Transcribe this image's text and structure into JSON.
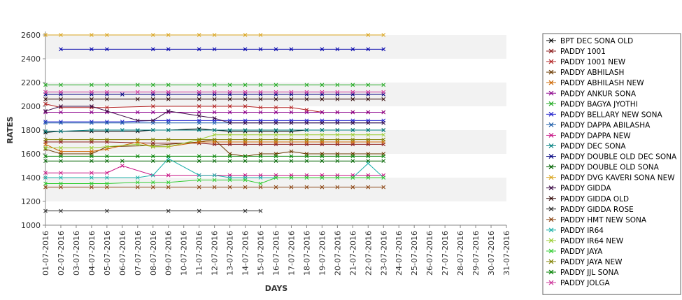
{
  "chart_data": {
    "type": "line",
    "title": "",
    "xlabel": "DAYS",
    "ylabel": "RATES",
    "ylim": [
      1000,
      2600
    ],
    "yticks": [
      1000,
      1200,
      1400,
      1600,
      1800,
      2000,
      2200,
      2400,
      2600
    ],
    "grid": "alternating horizontal bands",
    "legend_position": "right",
    "categories": [
      "01-07-2016",
      "02-07-2016",
      "03-07-2016",
      "04-07-2016",
      "05-07-2016",
      "06-07-2016",
      "07-07-2016",
      "08-07-2016",
      "09-07-2016",
      "10-07-2016",
      "11-07-2016",
      "12-07-2016",
      "13-07-2016",
      "14-07-2016",
      "15-07-2016",
      "16-07-2016",
      "17-07-2016",
      "18-07-2016",
      "19-07-2016",
      "20-07-2016",
      "21-07-2016",
      "22-07-2016",
      "23-07-2016",
      "24-07-2016",
      "25-07-2016",
      "26-07-2016",
      "27-07-2016",
      "28-07-2016",
      "29-07-2016",
      "30-07-2016",
      "31-07-2016"
    ],
    "series": [
      {
        "name": "BPT DEC SONA OLD",
        "color": "#000000",
        "x": [
          0,
          1,
          3,
          4,
          6,
          7,
          8,
          10,
          11,
          12,
          13,
          14,
          15,
          16,
          17,
          18,
          19,
          20,
          21,
          22
        ],
        "values": [
          1780,
          1790,
          1790,
          1790,
          1790,
          1800,
          1800,
          1810,
          1800,
          1790,
          1790,
          1790,
          1790,
          1790,
          1800,
          1800,
          1800,
          1800,
          1800,
          1800
        ]
      },
      {
        "name": "PADDY 1001",
        "color": "#8b1a1a",
        "x": [
          0,
          1,
          3,
          4,
          7,
          10,
          11,
          12,
          13,
          14,
          15,
          16,
          17,
          18,
          19,
          20,
          21,
          22
        ],
        "values": [
          1700,
          1700,
          1700,
          1700,
          1690,
          1690,
          1680,
          1680,
          1680,
          1680,
          1680,
          1680,
          1680,
          1680,
          1680,
          1680,
          1680,
          1680
        ]
      },
      {
        "name": "PADDY 1001 NEW",
        "color": "#b22222",
        "x": [
          0,
          1,
          3,
          4,
          7,
          10,
          11,
          12,
          13,
          14,
          15,
          16,
          17,
          18,
          19,
          20,
          21,
          22
        ],
        "values": [
          2020,
          1990,
          1990,
          1990,
          2000,
          2000,
          2000,
          2000,
          2000,
          1990,
          1990,
          1990,
          1970,
          1950,
          1950,
          1950,
          1950,
          1950
        ]
      },
      {
        "name": "PADDY ABHILASH",
        "color": "#6b3a00",
        "x": [
          0,
          1,
          3,
          4,
          7,
          10,
          11,
          12,
          13,
          14,
          15,
          16,
          17,
          18,
          19,
          20,
          21,
          22
        ],
        "values": [
          1640,
          1600,
          1600,
          1660,
          1670,
          1700,
          1720,
          1600,
          1580,
          1600,
          1600,
          1620,
          1600,
          1600,
          1600,
          1600,
          1600,
          1600
        ]
      },
      {
        "name": "PADDY ABHILASH NEW",
        "color": "#cd6600",
        "x": [
          0,
          1,
          3,
          4,
          6,
          7,
          8,
          10,
          11,
          12,
          13,
          14,
          15,
          17,
          18,
          19,
          20,
          21,
          22
        ],
        "values": [
          1680,
          1620,
          1620,
          1640,
          1700,
          1660,
          1660,
          1700,
          1700,
          1700,
          1700,
          1700,
          1700,
          1700,
          1700,
          1700,
          1700,
          1700,
          1700
        ]
      },
      {
        "name": "PADDY ANKUR SONA",
        "color": "#8b008b",
        "x": [
          0,
          1,
          3,
          4,
          6,
          7,
          8,
          10,
          11,
          12,
          13,
          14,
          15,
          16,
          17,
          18,
          19,
          20,
          21,
          22
        ],
        "values": [
          1950,
          1950,
          1950,
          1950,
          1950,
          1950,
          1950,
          1950,
          1950,
          1950,
          1950,
          1950,
          1950,
          1950,
          1950,
          1950,
          1950,
          1950,
          1950,
          1950
        ]
      },
      {
        "name": "PADDY BAGYA JYOTHI",
        "color": "#22aa22",
        "x": [
          0,
          1,
          3,
          4,
          6,
          7,
          8,
          10,
          11,
          12,
          13,
          14,
          15,
          17,
          18,
          19,
          20,
          21,
          22
        ],
        "values": [
          2180,
          2180,
          2180,
          2180,
          2180,
          2180,
          2180,
          2180,
          2180,
          2180,
          2180,
          2180,
          2180,
          2180,
          2180,
          2180,
          2180,
          2180,
          2180
        ]
      },
      {
        "name": "PADDY BELLARY NEW SONA",
        "color": "#2222cc",
        "x": [
          0,
          1,
          3,
          4,
          5,
          7,
          8,
          10,
          11,
          12,
          13,
          14,
          15,
          16,
          17,
          18,
          19,
          20,
          21,
          22
        ],
        "values": [
          1870,
          1870,
          1870,
          1870,
          1870,
          1880,
          1880,
          1880,
          1880,
          1880,
          1880,
          1880,
          1880,
          1880,
          1880,
          1880,
          1880,
          1880,
          1880,
          1880
        ]
      },
      {
        "name": "PADDY DAPPA ABILASHA",
        "color": "#1f5faa",
        "x": [
          0,
          1,
          3,
          4,
          5,
          7,
          8,
          10,
          11,
          12,
          13,
          14,
          15,
          16,
          17,
          18,
          19,
          20,
          21,
          22
        ],
        "values": [
          1860,
          1860,
          1860,
          1860,
          1860,
          1860,
          1860,
          1860,
          1860,
          1860,
          1860,
          1860,
          1860,
          1860,
          1860,
          1860,
          1860,
          1860,
          1860,
          1860
        ]
      },
      {
        "name": "PADDY DAPPA NEW",
        "color": "#c71585",
        "x": [
          0,
          1,
          3,
          4,
          5,
          7,
          8,
          10,
          11,
          12,
          13,
          14,
          15,
          16,
          17,
          18,
          19,
          20,
          21,
          22
        ],
        "values": [
          1440,
          1440,
          1440,
          1440,
          1500,
          1420,
          1420,
          1420,
          1420,
          1420,
          1420,
          1420,
          1420,
          1420,
          1420,
          1420,
          1420,
          1420,
          1420,
          1420
        ]
      },
      {
        "name": "PADDY DEC SONA",
        "color": "#008080",
        "x": [
          0,
          1,
          3,
          4,
          5,
          6,
          7,
          8,
          10,
          11,
          12,
          13,
          14,
          15,
          16,
          17,
          18,
          19,
          20,
          21,
          22
        ],
        "values": [
          1790,
          1790,
          1800,
          1800,
          1800,
          1800,
          1800,
          1800,
          1800,
          1800,
          1800,
          1800,
          1800,
          1800,
          1800,
          1800,
          1800,
          1800,
          1800,
          1800,
          1800
        ]
      },
      {
        "name": "PADDY DOUBLE OLD DEC SONA",
        "color": "#000080",
        "x": [
          0,
          1,
          3,
          4,
          5,
          7,
          8,
          10,
          11,
          12,
          13,
          14,
          15,
          16,
          17,
          18,
          19,
          20,
          21,
          22
        ],
        "values": [
          2100,
          2100,
          2100,
          2100,
          2100,
          2100,
          2100,
          2100,
          2100,
          2100,
          2100,
          2100,
          2100,
          2100,
          2100,
          2100,
          2100,
          2100,
          2100,
          2100
        ]
      },
      {
        "name": "PADDY DOUBLE OLD SONA",
        "color": "#006400",
        "x": [
          0,
          1,
          3,
          4,
          5,
          7,
          8,
          10,
          11,
          12,
          13,
          14,
          15,
          16,
          17,
          18,
          19,
          20,
          21,
          22
        ],
        "values": [
          1540,
          1540,
          1540,
          1540,
          1540,
          1540,
          1540,
          1540,
          1540,
          1540,
          1540,
          1540,
          1540,
          1540,
          1540,
          1540,
          1540,
          1540,
          1540,
          1540
        ]
      },
      {
        "name": "PADDY DVG KAVERI SONA NEW",
        "color": "#daa520",
        "x": [
          0,
          1,
          3,
          4,
          7,
          8,
          10,
          11,
          13,
          14,
          21,
          22
        ],
        "values": [
          2600,
          2600,
          2600,
          2600,
          2600,
          2600,
          2600,
          2600,
          2600,
          2600,
          2600,
          2600
        ]
      },
      {
        "name": "PADDY GIDDA",
        "color": "#3b0a45",
        "x": [
          0,
          1,
          3,
          4,
          6,
          7,
          8,
          10,
          11,
          12,
          13,
          14,
          15,
          16,
          17,
          18,
          19,
          20,
          21,
          22
        ],
        "values": [
          1960,
          2000,
          2000,
          1960,
          1880,
          1880,
          1960,
          1920,
          1900,
          1860,
          1860,
          1860,
          1860,
          1860,
          1860,
          1860,
          1860,
          1860,
          1860,
          1860
        ]
      },
      {
        "name": "PADDY GIDDA OLD",
        "color": "#2b0000",
        "x": [
          0,
          1,
          3,
          4,
          6,
          7,
          8,
          10,
          11,
          12,
          13,
          14,
          15,
          16,
          17,
          18,
          19,
          20,
          21,
          22
        ],
        "values": [
          2060,
          2060,
          2060,
          2060,
          2060,
          2060,
          2060,
          2060,
          2060,
          2060,
          2060,
          2060,
          2060,
          2060,
          2060,
          2060,
          2060,
          2060,
          2060,
          2060
        ]
      },
      {
        "name": "PADDY GIDDA ROSE",
        "color": "#333333",
        "x": [
          0,
          1,
          4,
          8,
          10,
          13,
          14
        ],
        "values": [
          1120,
          1120,
          1120,
          1120,
          1120,
          1120,
          1120
        ]
      },
      {
        "name": "PADDY HMT NEW SONA",
        "color": "#8b4513",
        "x": [
          0,
          1,
          3,
          4,
          6,
          7,
          8,
          10,
          11,
          12,
          13,
          14,
          15,
          16,
          17,
          18,
          19,
          20,
          21,
          22
        ],
        "values": [
          1320,
          1320,
          1320,
          1320,
          1320,
          1320,
          1320,
          1320,
          1320,
          1320,
          1320,
          1320,
          1320,
          1320,
          1320,
          1320,
          1320,
          1320,
          1320,
          1320
        ]
      },
      {
        "name": "PADDY IR64",
        "color": "#20b2aa",
        "x": [
          0,
          1,
          3,
          4,
          6,
          7,
          8,
          10,
          11,
          12,
          13,
          14,
          15,
          16,
          17,
          18,
          19,
          20,
          21,
          22
        ],
        "values": [
          1400,
          1400,
          1400,
          1400,
          1400,
          1420,
          1560,
          1420,
          1420,
          1400,
          1400,
          1400,
          1400,
          1400,
          1400,
          1400,
          1400,
          1400,
          1520,
          1400
        ]
      },
      {
        "name": "PADDY IR64 NEW",
        "color": "#9acd32",
        "x": [
          0,
          1,
          3,
          4,
          6,
          7,
          8,
          10,
          11,
          12,
          13,
          14,
          15,
          16,
          17,
          18,
          19,
          20,
          21,
          22
        ],
        "values": [
          1650,
          1650,
          1650,
          1660,
          1680,
          1660,
          1660,
          1720,
          1760,
          1760,
          1760,
          1760,
          1760,
          1760,
          1760,
          1760,
          1760,
          1760,
          1760,
          1760
        ]
      },
      {
        "name": "PADDY JAYA",
        "color": "#32cd32",
        "x": [
          0,
          1,
          3,
          4,
          6,
          7,
          8,
          10,
          11,
          12,
          13,
          14,
          15,
          16,
          17,
          18,
          19,
          20,
          21,
          22
        ],
        "values": [
          1350,
          1350,
          1350,
          1350,
          1360,
          1360,
          1360,
          1380,
          1380,
          1380,
          1380,
          1350,
          1400,
          1400,
          1400,
          1400,
          1400,
          1400,
          1400,
          1400
        ]
      },
      {
        "name": "PADDY JAYA NEW",
        "color": "#808000",
        "x": [
          0,
          1,
          3,
          4,
          6,
          7,
          8,
          10,
          11,
          12,
          13,
          14,
          15,
          16,
          17,
          18,
          19,
          20,
          21,
          22
        ],
        "values": [
          1720,
          1720,
          1720,
          1720,
          1720,
          1720,
          1720,
          1720,
          1720,
          1720,
          1720,
          1720,
          1720,
          1720,
          1720,
          1720,
          1720,
          1720,
          1720,
          1720
        ]
      },
      {
        "name": "PADDY JJL SONA",
        "color": "#008000",
        "x": [
          0,
          1,
          3,
          4,
          6,
          7,
          8,
          10,
          11,
          12,
          13,
          14,
          15,
          16,
          17,
          18,
          19,
          20,
          21,
          22
        ],
        "values": [
          1580,
          1580,
          1580,
          1580,
          1580,
          1580,
          1580,
          1580,
          1580,
          1580,
          1580,
          1580,
          1580,
          1580,
          1580,
          1580,
          1580,
          1580,
          1580,
          1580
        ]
      },
      {
        "name": "PADDY JOLGA",
        "color": "#cc3399",
        "x": [
          0,
          1,
          3,
          4,
          6,
          7,
          8,
          10,
          11,
          12,
          13,
          14,
          15,
          16,
          17,
          18,
          19,
          20,
          21,
          22
        ],
        "values": [
          2120,
          2120,
          2120,
          2120,
          2120,
          2120,
          2120,
          2120,
          2120,
          2120,
          2120,
          2120,
          2120,
          2120,
          2120,
          2120,
          2120,
          2120,
          2120,
          2120
        ]
      }
    ],
    "extra_lines": [
      {
        "color": "#0000aa",
        "x": [
          1,
          3,
          4,
          7,
          8,
          10,
          11,
          13,
          14,
          15,
          16,
          18,
          19,
          20,
          21,
          22
        ],
        "values": [
          2480,
          2480,
          2480,
          2480,
          2480,
          2480,
          2480,
          2480,
          2480,
          2480,
          2480,
          2480,
          2480,
          2480,
          2480,
          2480
        ]
      }
    ]
  }
}
